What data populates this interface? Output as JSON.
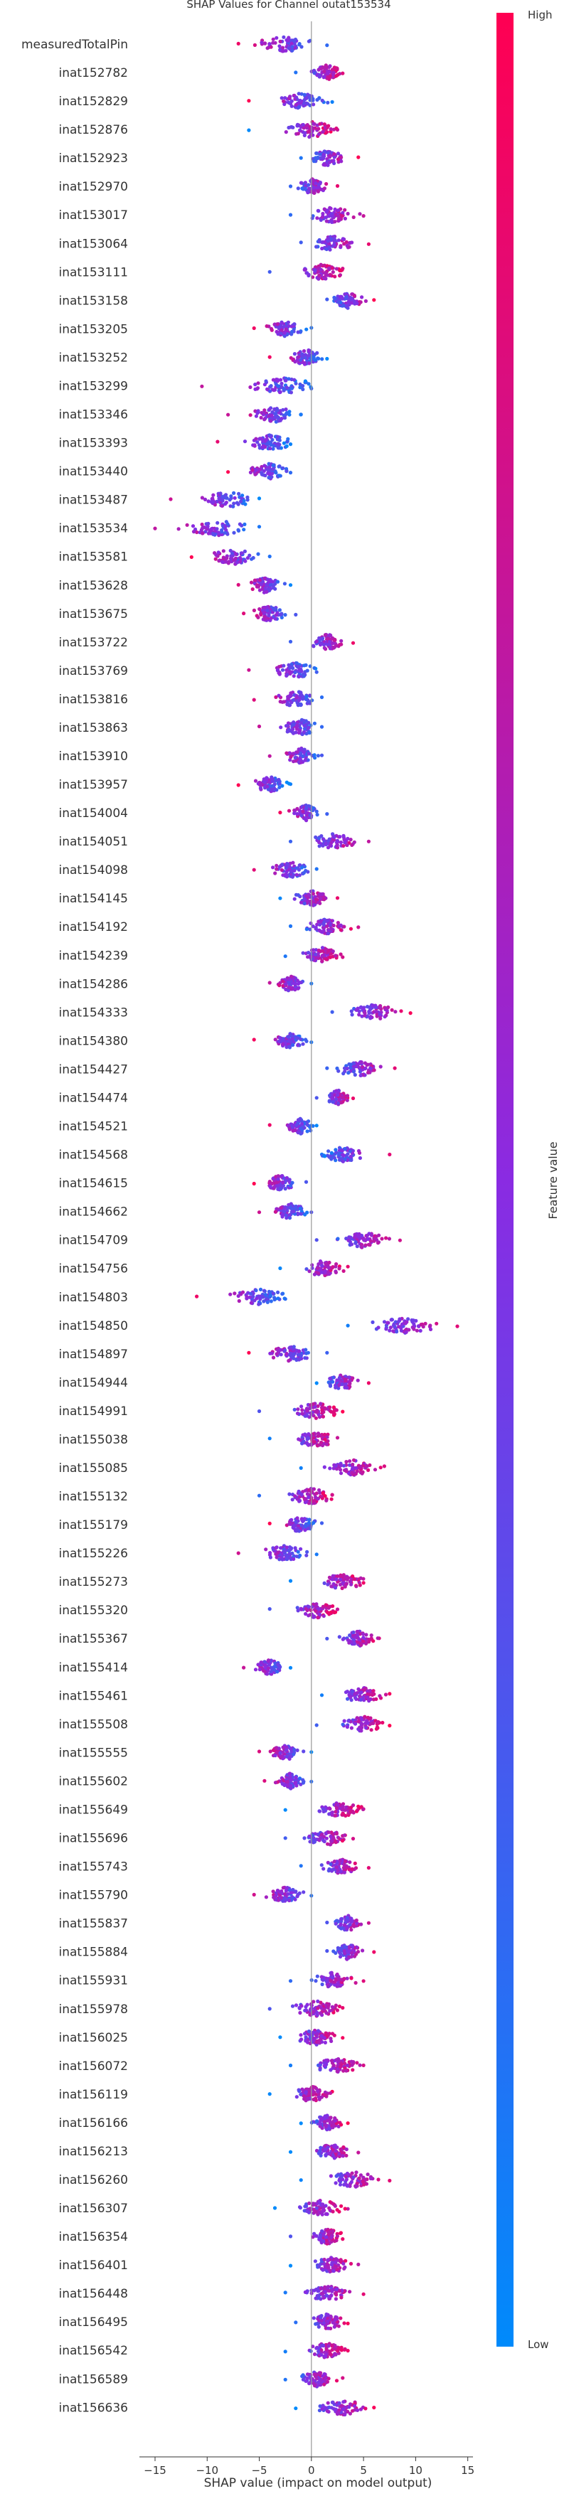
{
  "chart_data": {
    "type": "scatter",
    "subtype": "shap-beeswarm",
    "title": "SHAP Values for Channel outat153534",
    "xlabel": "SHAP value (impact on model output)",
    "xlim": [
      -16.5,
      15.5
    ],
    "xticks": [
      -15,
      -10,
      -5,
      0,
      5,
      10,
      15
    ],
    "grid": false,
    "colorbar": {
      "label": "Feature value",
      "high": "High",
      "low": "Low",
      "color_low": "#008afb",
      "color_high": "#ff0052"
    },
    "features": [
      {
        "name": "measuredTotalPin",
        "center": -2.5,
        "min": -7,
        "max": 1.5
      },
      {
        "name": "inat152782",
        "center": 1.5,
        "min": -1.5,
        "max": 3
      },
      {
        "name": "inat152829",
        "center": -1,
        "min": -6,
        "max": 2
      },
      {
        "name": "inat152876",
        "center": 0,
        "min": -6,
        "max": 2.5
      },
      {
        "name": "inat152923",
        "center": 1.5,
        "min": -1,
        "max": 4.5
      },
      {
        "name": "inat152970",
        "center": 0,
        "min": -2,
        "max": 2.5
      },
      {
        "name": "inat153017",
        "center": 2,
        "min": -2,
        "max": 5
      },
      {
        "name": "inat153064",
        "center": 2,
        "min": -1,
        "max": 5.5
      },
      {
        "name": "inat153111",
        "center": 1,
        "min": -4,
        "max": 3
      },
      {
        "name": "inat153158",
        "center": 3.5,
        "min": 1.5,
        "max": 6
      },
      {
        "name": "inat153205",
        "center": -2.5,
        "min": -5.5,
        "max": 0
      },
      {
        "name": "inat153252",
        "center": -0.5,
        "min": -4,
        "max": 1.5
      },
      {
        "name": "inat153299",
        "center": -2.5,
        "min": -10.5,
        "max": 0
      },
      {
        "name": "inat153346",
        "center": -3.5,
        "min": -8,
        "max": -1
      },
      {
        "name": "inat153393",
        "center": -4,
        "min": -9,
        "max": -2
      },
      {
        "name": "inat153440",
        "center": -4,
        "min": -8,
        "max": -2
      },
      {
        "name": "inat153487",
        "center": -8,
        "min": -13.5,
        "max": -5
      },
      {
        "name": "inat153534",
        "center": -9,
        "min": -15,
        "max": -5
      },
      {
        "name": "inat153581",
        "center": -7.5,
        "min": -11.5,
        "max": -4
      },
      {
        "name": "inat153628",
        "center": -4.5,
        "min": -7,
        "max": -2
      },
      {
        "name": "inat153675",
        "center": -4,
        "min": -6.5,
        "max": -1.5
      },
      {
        "name": "inat153722",
        "center": 1.5,
        "min": -2,
        "max": 4
      },
      {
        "name": "inat153769",
        "center": -1.5,
        "min": -6,
        "max": 0.5
      },
      {
        "name": "inat153816",
        "center": -1.5,
        "min": -5.5,
        "max": 1
      },
      {
        "name": "inat153863",
        "center": -1,
        "min": -5,
        "max": 1
      },
      {
        "name": "inat153910",
        "center": -1,
        "min": -4,
        "max": 1
      },
      {
        "name": "inat153957",
        "center": -4,
        "min": -7,
        "max": -2
      },
      {
        "name": "inat154004",
        "center": -0.5,
        "min": -3,
        "max": 1.5
      },
      {
        "name": "inat154051",
        "center": 2,
        "min": -2,
        "max": 5.5
      },
      {
        "name": "inat154098",
        "center": -2,
        "min": -5.5,
        "max": 0.5
      },
      {
        "name": "inat154145",
        "center": 0,
        "min": -3,
        "max": 2.5
      },
      {
        "name": "inat154192",
        "center": 1.5,
        "min": -2,
        "max": 4.5
      },
      {
        "name": "inat154239",
        "center": 1,
        "min": -2.5,
        "max": 3
      },
      {
        "name": "inat154286",
        "center": -2,
        "min": -4,
        "max": 0
      },
      {
        "name": "inat154333",
        "center": 6,
        "min": 2,
        "max": 9.5
      },
      {
        "name": "inat154380",
        "center": -2,
        "min": -5.5,
        "max": 0
      },
      {
        "name": "inat154427",
        "center": 4.5,
        "min": 1.5,
        "max": 8
      },
      {
        "name": "inat154474",
        "center": 2.5,
        "min": 0.5,
        "max": 4
      },
      {
        "name": "inat154521",
        "center": -1,
        "min": -4,
        "max": 0.5
      },
      {
        "name": "inat154568",
        "center": 3,
        "min": 1,
        "max": 7.5
      },
      {
        "name": "inat154615",
        "center": -3,
        "min": -5.5,
        "max": -0.5
      },
      {
        "name": "inat154662",
        "center": -2,
        "min": -5,
        "max": 0
      },
      {
        "name": "inat154709",
        "center": 5,
        "min": 0.5,
        "max": 8.5
      },
      {
        "name": "inat154756",
        "center": 1,
        "min": -3,
        "max": 3.5
      },
      {
        "name": "inat154803",
        "center": -5,
        "min": -11,
        "max": -2.5
      },
      {
        "name": "inat154850",
        "center": 9,
        "min": 3.5,
        "max": 14
      },
      {
        "name": "inat154897",
        "center": -2,
        "min": -6,
        "max": 1.5
      },
      {
        "name": "inat154944",
        "center": 3,
        "min": 0.5,
        "max": 5.5
      },
      {
        "name": "inat154991",
        "center": 0.5,
        "min": -5,
        "max": 3
      },
      {
        "name": "inat155038",
        "center": 0.5,
        "min": -4,
        "max": 2.5
      },
      {
        "name": "inat155085",
        "center": 4,
        "min": -1,
        "max": 7
      },
      {
        "name": "inat155132",
        "center": 0,
        "min": -5,
        "max": 2
      },
      {
        "name": "inat155179",
        "center": -1,
        "min": -4,
        "max": 1
      },
      {
        "name": "inat155226",
        "center": -2.5,
        "min": -7,
        "max": 0.5
      },
      {
        "name": "inat155273",
        "center": 3,
        "min": -2,
        "max": 5
      },
      {
        "name": "inat155320",
        "center": 0.5,
        "min": -4,
        "max": 2.5
      },
      {
        "name": "inat155367",
        "center": 4.5,
        "min": 1.5,
        "max": 6.5
      },
      {
        "name": "inat155414",
        "center": -4,
        "min": -6.5,
        "max": -2
      },
      {
        "name": "inat155461",
        "center": 5,
        "min": 1,
        "max": 7.5
      },
      {
        "name": "inat155508",
        "center": 5,
        "min": 0.5,
        "max": 7.5
      },
      {
        "name": "inat155555",
        "center": -2.5,
        "min": -5,
        "max": 0
      },
      {
        "name": "inat155602",
        "center": -2,
        "min": -4.5,
        "max": 0
      },
      {
        "name": "inat155649",
        "center": 3,
        "min": -2.5,
        "max": 5
      },
      {
        "name": "inat155696",
        "center": 1.5,
        "min": -2.5,
        "max": 4
      },
      {
        "name": "inat155743",
        "center": 3,
        "min": -1,
        "max": 5.5
      },
      {
        "name": "inat155790",
        "center": -2.5,
        "min": -5.5,
        "max": 0
      },
      {
        "name": "inat155837",
        "center": 3.5,
        "min": 1.5,
        "max": 5.5
      },
      {
        "name": "inat155884",
        "center": 3.5,
        "min": 1.5,
        "max": 6
      },
      {
        "name": "inat155931",
        "center": 2,
        "min": -2,
        "max": 5
      },
      {
        "name": "inat155978",
        "center": 0.5,
        "min": -4,
        "max": 3
      },
      {
        "name": "inat156025",
        "center": 0.5,
        "min": -3,
        "max": 3
      },
      {
        "name": "inat156072",
        "center": 2.5,
        "min": -2,
        "max": 5
      },
      {
        "name": "inat156119",
        "center": 0,
        "min": -4,
        "max": 2
      },
      {
        "name": "inat156166",
        "center": 1.5,
        "min": -1,
        "max": 3.5
      },
      {
        "name": "inat156213",
        "center": 2,
        "min": -2,
        "max": 4.5
      },
      {
        "name": "inat156260",
        "center": 4,
        "min": -1,
        "max": 7.5
      },
      {
        "name": "inat156307",
        "center": 1,
        "min": -3.5,
        "max": 3.5
      },
      {
        "name": "inat156354",
        "center": 1.5,
        "min": -2,
        "max": 3
      },
      {
        "name": "inat156401",
        "center": 2,
        "min": -2,
        "max": 4.5
      },
      {
        "name": "inat156448",
        "center": 1.5,
        "min": -2.5,
        "max": 5
      },
      {
        "name": "inat156495",
        "center": 1.5,
        "min": -1.5,
        "max": 3.5
      },
      {
        "name": "inat156542",
        "center": 1.5,
        "min": -2.5,
        "max": 3.5
      },
      {
        "name": "inat156589",
        "center": 0.5,
        "min": -2.5,
        "max": 3
      },
      {
        "name": "inat156636",
        "center": 3,
        "min": -1.5,
        "max": 6
      }
    ]
  }
}
